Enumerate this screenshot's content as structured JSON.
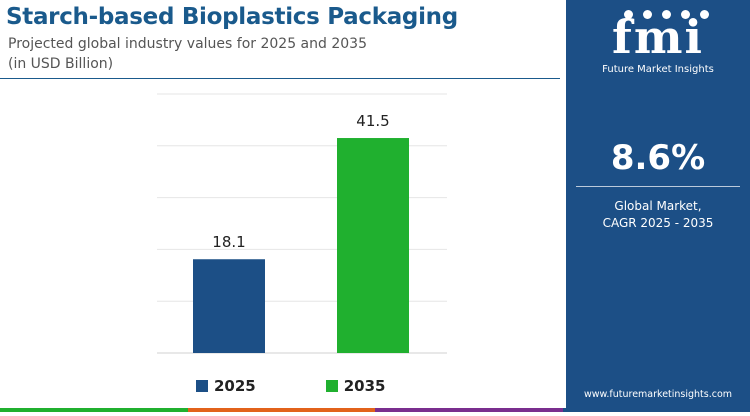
{
  "header": {
    "title": "Starch-based Bioplastics Packaging",
    "subtitle": "Projected global industry values for 2025 and 2035",
    "unit": "(in USD Billion)"
  },
  "chart_data": {
    "type": "bar",
    "title": "Starch-based Bioplastics Packaging",
    "subtitle": "Projected global industry values for 2025 and 2035",
    "ylabel": "",
    "xlabel": "",
    "unit": "(in USD Billion)",
    "categories": [
      "2025",
      "2035"
    ],
    "values": [
      18.1,
      41.5
    ],
    "value_labels": [
      "18.1",
      "41.5"
    ],
    "colors": [
      "#1c4f86",
      "#20b02f"
    ],
    "ylim": [
      0,
      50
    ],
    "grid": true,
    "legend_position": "bottom"
  },
  "legend": {
    "items": [
      {
        "label": "2025",
        "color": "#1c4f86"
      },
      {
        "label": "2035",
        "color": "#20b02f"
      }
    ]
  },
  "side_panel": {
    "logo": "fmi",
    "logo_subtext": "Future Market Insights",
    "cagr_value": "8.6%",
    "cagr_label_line1": "Global Market,",
    "cagr_label_line2": "CAGR 2025 - 2035",
    "website": "www.futuremarketinsights.com"
  },
  "bottom_strip_colors": [
    "#20b02f",
    "#e2621b",
    "#7a2e8e",
    "#1c4f86"
  ]
}
